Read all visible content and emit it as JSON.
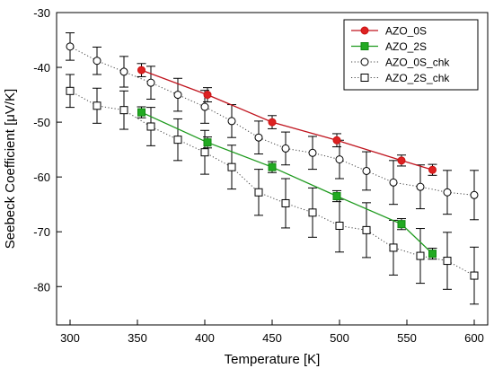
{
  "chart_data": {
    "type": "scatter",
    "xlabel": "Temperature [K]",
    "ylabel": "Seebeck Coefficient [μV/K]",
    "xlim": [
      290,
      610
    ],
    "ylim": [
      -87,
      -30
    ],
    "xticks": [
      300,
      350,
      400,
      450,
      500,
      550,
      600
    ],
    "yticks": [
      -30,
      -40,
      -50,
      -60,
      -70,
      -80
    ],
    "grid": false,
    "legend_position": "top-right",
    "series": [
      {
        "name": "AZO_0S",
        "color": "#cc1111",
        "marker": "circle",
        "marker_fill": "#dd2222",
        "line_style": "solid",
        "line_color": "#c0141e",
        "x": [
          353,
          402,
          450,
          498,
          546,
          569
        ],
        "y": [
          -40.5,
          -45.0,
          -50.0,
          -53.3,
          -57.0,
          -58.7
        ],
        "err": [
          1.2,
          1.3,
          1.2,
          1.2,
          1.0,
          1.0
        ]
      },
      {
        "name": "AZO_2S",
        "color": "#118811",
        "marker": "square",
        "marker_fill": "#22aa22",
        "line_style": "solid",
        "line_color": "#1e9a1e",
        "x": [
          353,
          402,
          450,
          498,
          546,
          569
        ],
        "y": [
          -48.2,
          -53.7,
          -58.2,
          -63.5,
          -68.6,
          -74.0
        ],
        "err": [
          1.0,
          1.0,
          1.0,
          1.0,
          1.0,
          1.0
        ]
      },
      {
        "name": "AZO_0S_chk",
        "color": "#000000",
        "marker": "circle",
        "marker_fill": "#ffffff",
        "line_style": "dotted",
        "line_color": "#444444",
        "x": [
          300,
          320,
          340,
          360,
          380,
          400,
          420,
          440,
          460,
          480,
          500,
          520,
          540,
          560,
          580,
          600
        ],
        "y": [
          -36.2,
          -38.8,
          -40.8,
          -42.8,
          -45.0,
          -47.2,
          -49.8,
          -52.8,
          -54.8,
          -55.6,
          -56.8,
          -58.9,
          -61.0,
          -61.8,
          -62.8,
          -63.3
        ],
        "err": [
          2.5,
          2.5,
          2.8,
          3.0,
          3.0,
          3.0,
          3.0,
          3.0,
          3.0,
          3.0,
          3.5,
          3.5,
          4.0,
          4.0,
          4.0,
          4.5
        ]
      },
      {
        "name": "AZO_2S_chk",
        "color": "#000000",
        "marker": "square",
        "marker_fill": "#ffffff",
        "line_style": "dotted",
        "line_color": "#444444",
        "x": [
          300,
          320,
          340,
          360,
          380,
          400,
          420,
          440,
          460,
          480,
          500,
          520,
          540,
          560,
          580,
          600
        ],
        "y": [
          -44.3,
          -47.0,
          -47.8,
          -50.8,
          -53.2,
          -55.5,
          -58.2,
          -62.8,
          -64.8,
          -66.5,
          -68.9,
          -69.7,
          -72.9,
          -74.4,
          -75.3,
          -78.0
        ],
        "err": [
          3.0,
          3.2,
          3.5,
          3.5,
          3.8,
          4.0,
          4.0,
          4.2,
          4.5,
          4.5,
          4.8,
          5.0,
          5.0,
          5.0,
          5.2,
          5.2
        ]
      }
    ]
  }
}
